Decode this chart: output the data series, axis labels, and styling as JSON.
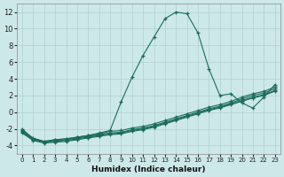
{
  "xlabel": "Humidex (Indice chaleur)",
  "xlim": [
    -0.5,
    23.5
  ],
  "ylim": [
    -5,
    13
  ],
  "xticks": [
    0,
    1,
    2,
    3,
    4,
    5,
    6,
    7,
    8,
    9,
    10,
    11,
    12,
    13,
    14,
    15,
    16,
    17,
    18,
    19,
    20,
    21,
    22,
    23
  ],
  "yticks": [
    -4,
    -2,
    0,
    2,
    4,
    6,
    8,
    10,
    12
  ],
  "bg_color": "#cde8e8",
  "grid_color": "#b0d0d0",
  "line_color": "#1a6b5a",
  "lines": [
    {
      "x": [
        0,
        1,
        2,
        3,
        4,
        5,
        6,
        7,
        8,
        9,
        10,
        11,
        12,
        13,
        14,
        15,
        16,
        17,
        18,
        19,
        20,
        21,
        22,
        23
      ],
      "y": [
        -2.0,
        -3.2,
        -3.5,
        -3.3,
        -3.2,
        -3.0,
        -2.8,
        -2.5,
        -2.2,
        1.2,
        4.2,
        6.8,
        9.0,
        11.2,
        12.0,
        11.8,
        9.5,
        5.2,
        2.0,
        2.2,
        1.1,
        0.5,
        1.8,
        3.3
      ]
    },
    {
      "x": [
        0,
        1,
        2,
        3,
        4,
        5,
        6,
        7,
        8,
        9,
        10,
        11,
        12,
        13,
        14,
        15,
        16,
        17,
        18,
        19,
        20,
        21,
        22,
        23
      ],
      "y": [
        -2.2,
        -3.1,
        -3.5,
        -3.3,
        -3.2,
        -3.0,
        -2.8,
        -2.6,
        -2.3,
        -2.2,
        -1.9,
        -1.7,
        -1.4,
        -1.0,
        -0.6,
        -0.2,
        0.2,
        0.6,
        0.9,
        1.3,
        1.8,
        2.2,
        2.5,
        3.0
      ]
    },
    {
      "x": [
        0,
        1,
        2,
        3,
        4,
        5,
        6,
        7,
        8,
        9,
        10,
        11,
        12,
        13,
        14,
        15,
        16,
        17,
        18,
        19,
        20,
        21,
        22,
        23
      ],
      "y": [
        -2.3,
        -3.2,
        -3.6,
        -3.4,
        -3.3,
        -3.1,
        -2.9,
        -2.7,
        -2.5,
        -2.4,
        -2.1,
        -1.9,
        -1.6,
        -1.2,
        -0.8,
        -0.4,
        0.0,
        0.4,
        0.7,
        1.1,
        1.6,
        2.0,
        2.3,
        2.8
      ]
    },
    {
      "x": [
        0,
        1,
        2,
        3,
        4,
        5,
        6,
        7,
        8,
        9,
        10,
        11,
        12,
        13,
        14,
        15,
        16,
        17,
        18,
        19,
        20,
        21,
        22,
        23
      ],
      "y": [
        -2.4,
        -3.3,
        -3.6,
        -3.5,
        -3.4,
        -3.2,
        -3.0,
        -2.8,
        -2.6,
        -2.5,
        -2.2,
        -2.0,
        -1.7,
        -1.3,
        -0.9,
        -0.5,
        -0.1,
        0.3,
        0.6,
        1.0,
        1.4,
        1.8,
        2.1,
        2.6
      ]
    },
    {
      "x": [
        0,
        1,
        2,
        3,
        4,
        5,
        6,
        7,
        8,
        9,
        10,
        11,
        12,
        13,
        14,
        15,
        16,
        17,
        18,
        19,
        20,
        21,
        22,
        23
      ],
      "y": [
        -2.5,
        -3.4,
        -3.7,
        -3.6,
        -3.5,
        -3.3,
        -3.1,
        -2.9,
        -2.7,
        -2.6,
        -2.3,
        -2.1,
        -1.8,
        -1.4,
        -1.0,
        -0.6,
        -0.2,
        0.2,
        0.5,
        0.9,
        1.3,
        1.7,
        2.0,
        2.5
      ]
    }
  ]
}
